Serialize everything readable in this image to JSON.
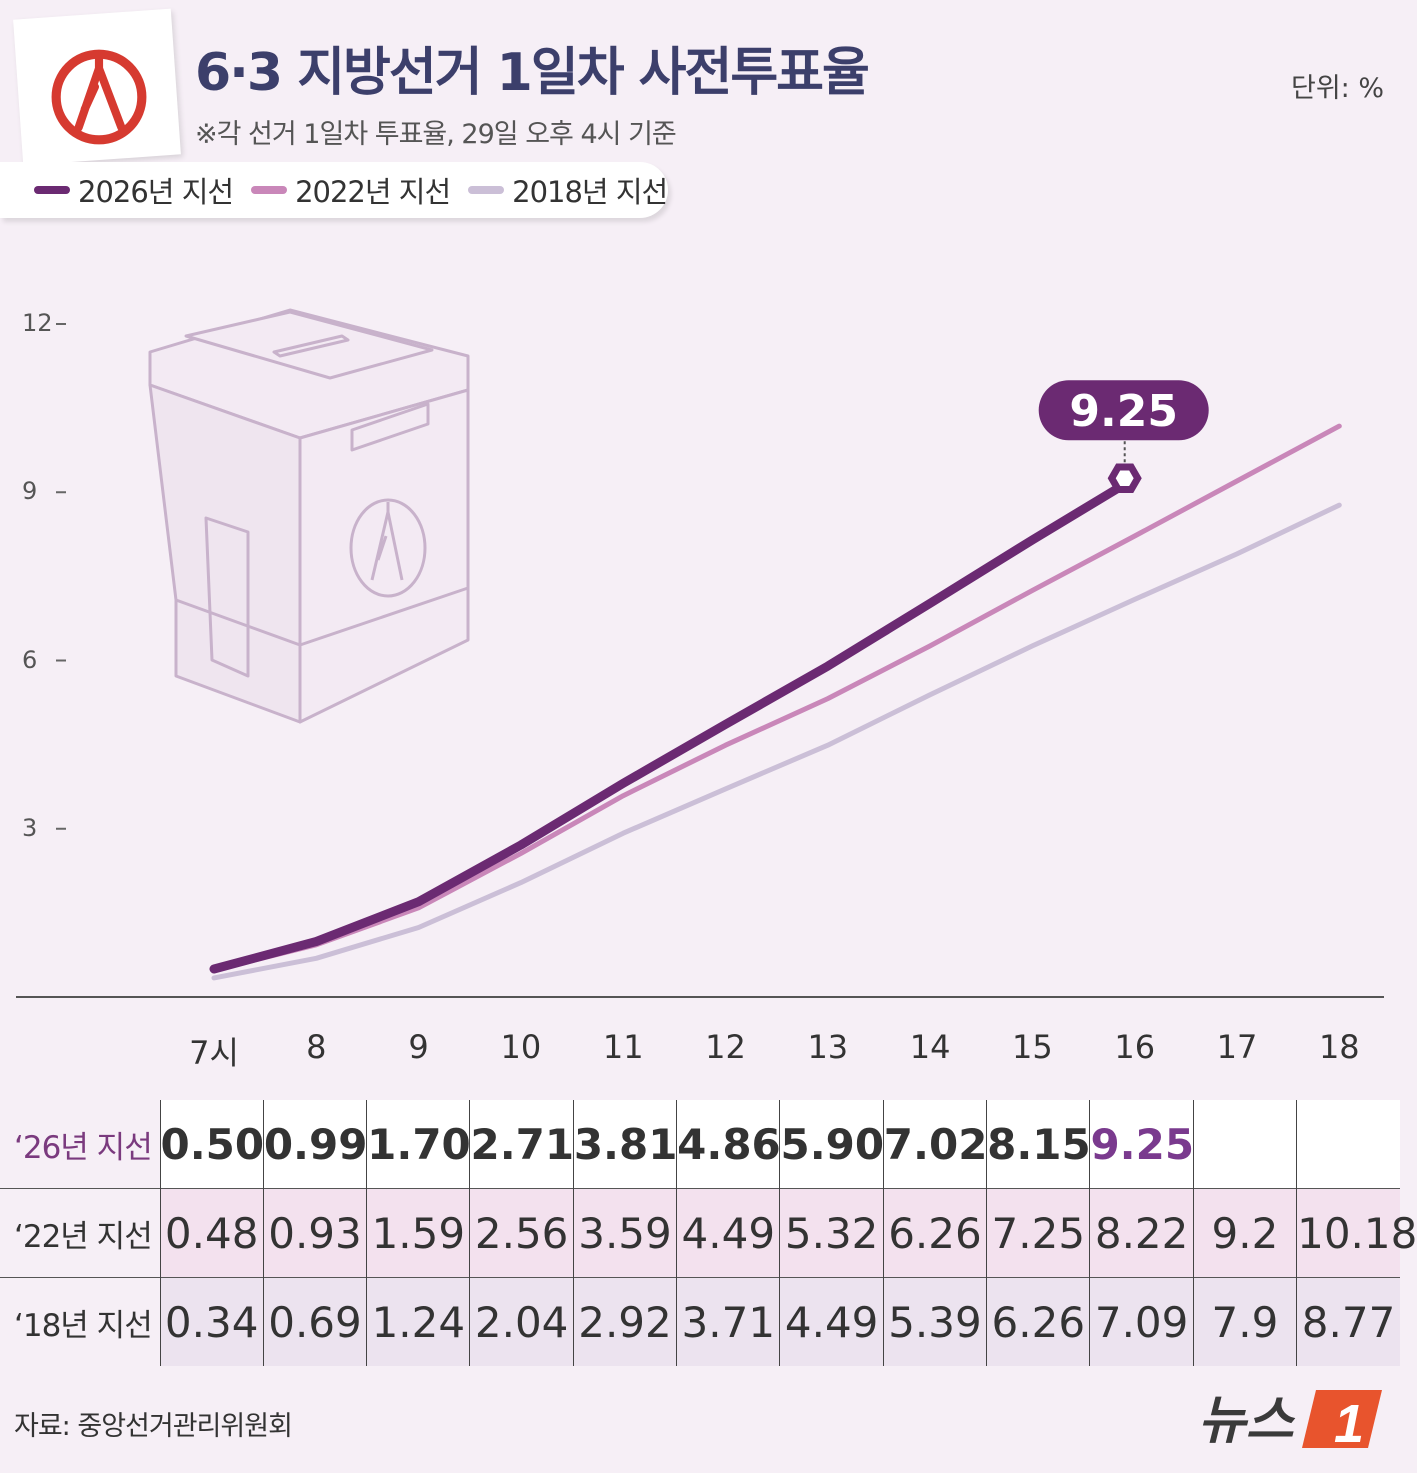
{
  "title": "6·3 지방선거 1일차 사전투표율",
  "subtitle": "※각 선거 1일차 투표율, 29일 오후 4시 기준",
  "unit": "단위: %",
  "legend": [
    {
      "label": "2026년 지선",
      "color": "#6b2a72"
    },
    {
      "label": "2022년 지선",
      "color": "#c987b9"
    },
    {
      "label": "2018년 지선",
      "color": "#cbbfd7"
    }
  ],
  "chart_data": {
    "type": "line",
    "x": [
      "7시",
      "8",
      "9",
      "10",
      "11",
      "12",
      "13",
      "14",
      "15",
      "16",
      "17",
      "18"
    ],
    "yticks": [
      "12",
      "9",
      "6",
      "3"
    ],
    "ylim": [
      0,
      12
    ],
    "series": [
      {
        "name": "2026년 지선",
        "color": "#6b2a72",
        "values": [
          0.5,
          0.99,
          1.7,
          2.71,
          3.81,
          4.86,
          5.9,
          7.02,
          8.15,
          9.25,
          null,
          null
        ]
      },
      {
        "name": "2022년 지선",
        "color": "#c987b9",
        "values": [
          0.48,
          0.93,
          1.59,
          2.56,
          3.59,
          4.49,
          5.32,
          6.26,
          7.25,
          8.22,
          9.2,
          10.18
        ]
      },
      {
        "name": "2018년 지선",
        "color": "#cbbfd7",
        "values": [
          0.34,
          0.69,
          1.24,
          2.04,
          2.92,
          3.71,
          4.49,
          5.39,
          6.26,
          7.09,
          7.9,
          8.77
        ]
      }
    ],
    "callout": "9.25"
  },
  "table": {
    "rows": [
      {
        "label": "‘26년 지선",
        "cells": [
          "0.50",
          "0.99",
          "1.70",
          "2.71",
          "3.81",
          "4.86",
          "5.90",
          "7.02",
          "8.15",
          "9.25",
          "",
          ""
        ]
      },
      {
        "label": "‘22년 지선",
        "cells": [
          "0.48",
          "0.93",
          "1.59",
          "2.56",
          "3.59",
          "4.49",
          "5.32",
          "6.26",
          "7.25",
          "8.22",
          "9.2",
          "10.18"
        ]
      },
      {
        "label": "‘18년 지선",
        "cells": [
          "0.34",
          "0.69",
          "1.24",
          "2.04",
          "2.92",
          "3.71",
          "4.49",
          "5.39",
          "6.26",
          "7.09",
          "7.9",
          "8.77"
        ]
      }
    ]
  },
  "source": "자료: 중앙선거관리위원회",
  "logo": {
    "text": "뉴스",
    "mark": "1"
  },
  "colors": {
    "accent": "#6b2a72",
    "title": "#3c3f6b",
    "logo": "#e8542d"
  }
}
